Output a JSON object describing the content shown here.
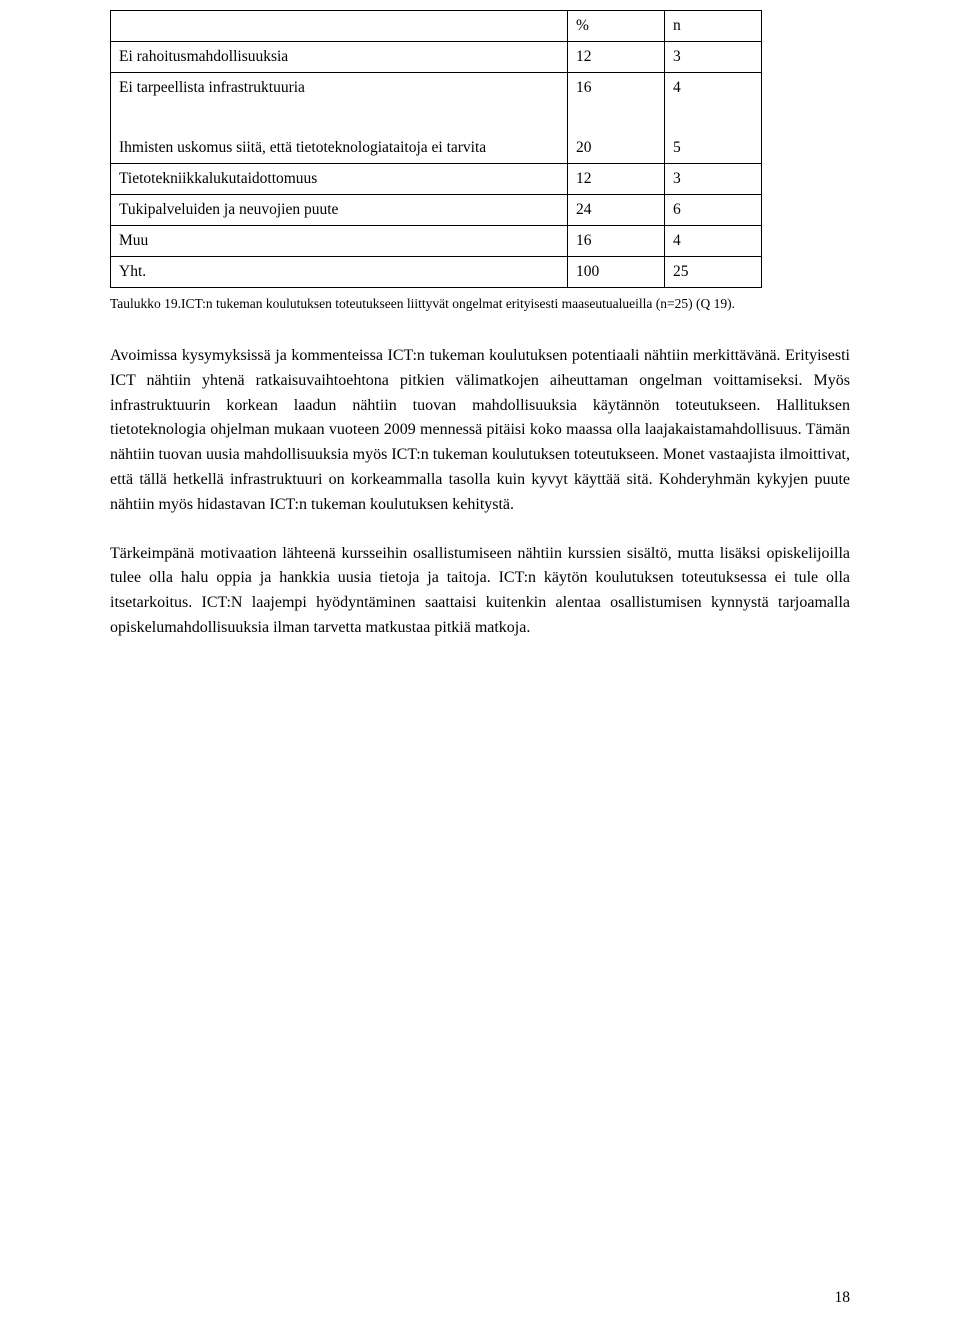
{
  "table": {
    "header": {
      "pct": "%",
      "n": "n"
    },
    "rows": [
      {
        "label": "Ei rahoitusmahdollisuuksia",
        "pct": "12",
        "n": "3"
      },
      {
        "label": "Ei tarpeellista infrastruktuuria",
        "pct": "16",
        "n": "4"
      },
      {
        "label": "Ihmisten uskomus siitä, että tietoteknologiataitoja ei tarvita",
        "pct": "20",
        "n": "5"
      },
      {
        "label": "Tietotekniikkalukutaidottomuus",
        "pct": "12",
        "n": "3"
      },
      {
        "label": "Tukipalveluiden ja neuvojien puute",
        "pct": "24",
        "n": "6"
      },
      {
        "label": "Muu",
        "pct": "16",
        "n": "4"
      },
      {
        "label": "Yht.",
        "pct": "100",
        "n": "25"
      }
    ]
  },
  "caption": "Taulukko 19.ICT:n tukeman koulutuksen toteutukseen liittyvät ongelmat erityisesti maaseutualueilla (n=25) (Q 19).",
  "paragraphs": {
    "p1": "Avoimissa kysymyksissä ja kommenteissa ICT:n tukeman koulutuksen potentiaali nähtiin merkittävänä. Erityisesti ICT nähtiin yhtenä ratkaisuvaihtoehtona pitkien välimatkojen aiheuttaman ongelman voittamiseksi. Myös infrastruktuurin korkean laadun nähtiin tuovan mahdollisuuksia käytännön toteutukseen. Hallituksen tietoteknologia ohjelman mukaan vuoteen 2009 mennessä pitäisi koko maassa olla laajakaistamahdollisuus. Tämän nähtiin tuovan uusia mahdollisuuksia myös ICT:n tukeman koulutuksen toteutukseen. Monet vastaajista ilmoittivat, että tällä hetkellä infrastruktuuri on korkeammalla tasolla kuin kyvyt käyttää sitä. Kohderyhmän kykyjen puute nähtiin myös hidastavan ICT:n tukeman koulutuksen kehitystä.",
    "p2": "Tärkeimpänä motivaation lähteenä kursseihin osallistumiseen nähtiin kurssien sisältö, mutta lisäksi opiskelijoilla tulee olla halu oppia ja hankkia uusia tietoja ja taitoja. ICT:n käytön koulutuksen toteutuksessa ei tule olla itsetarkoitus.  ICT:N laajempi hyödyntäminen saattaisi kuitenkin alentaa osallistumisen kynnystä tarjoamalla opiskelumahdollisuuksia ilman tarvetta matkustaa pitkiä matkoja."
  },
  "pagenum": "18"
}
